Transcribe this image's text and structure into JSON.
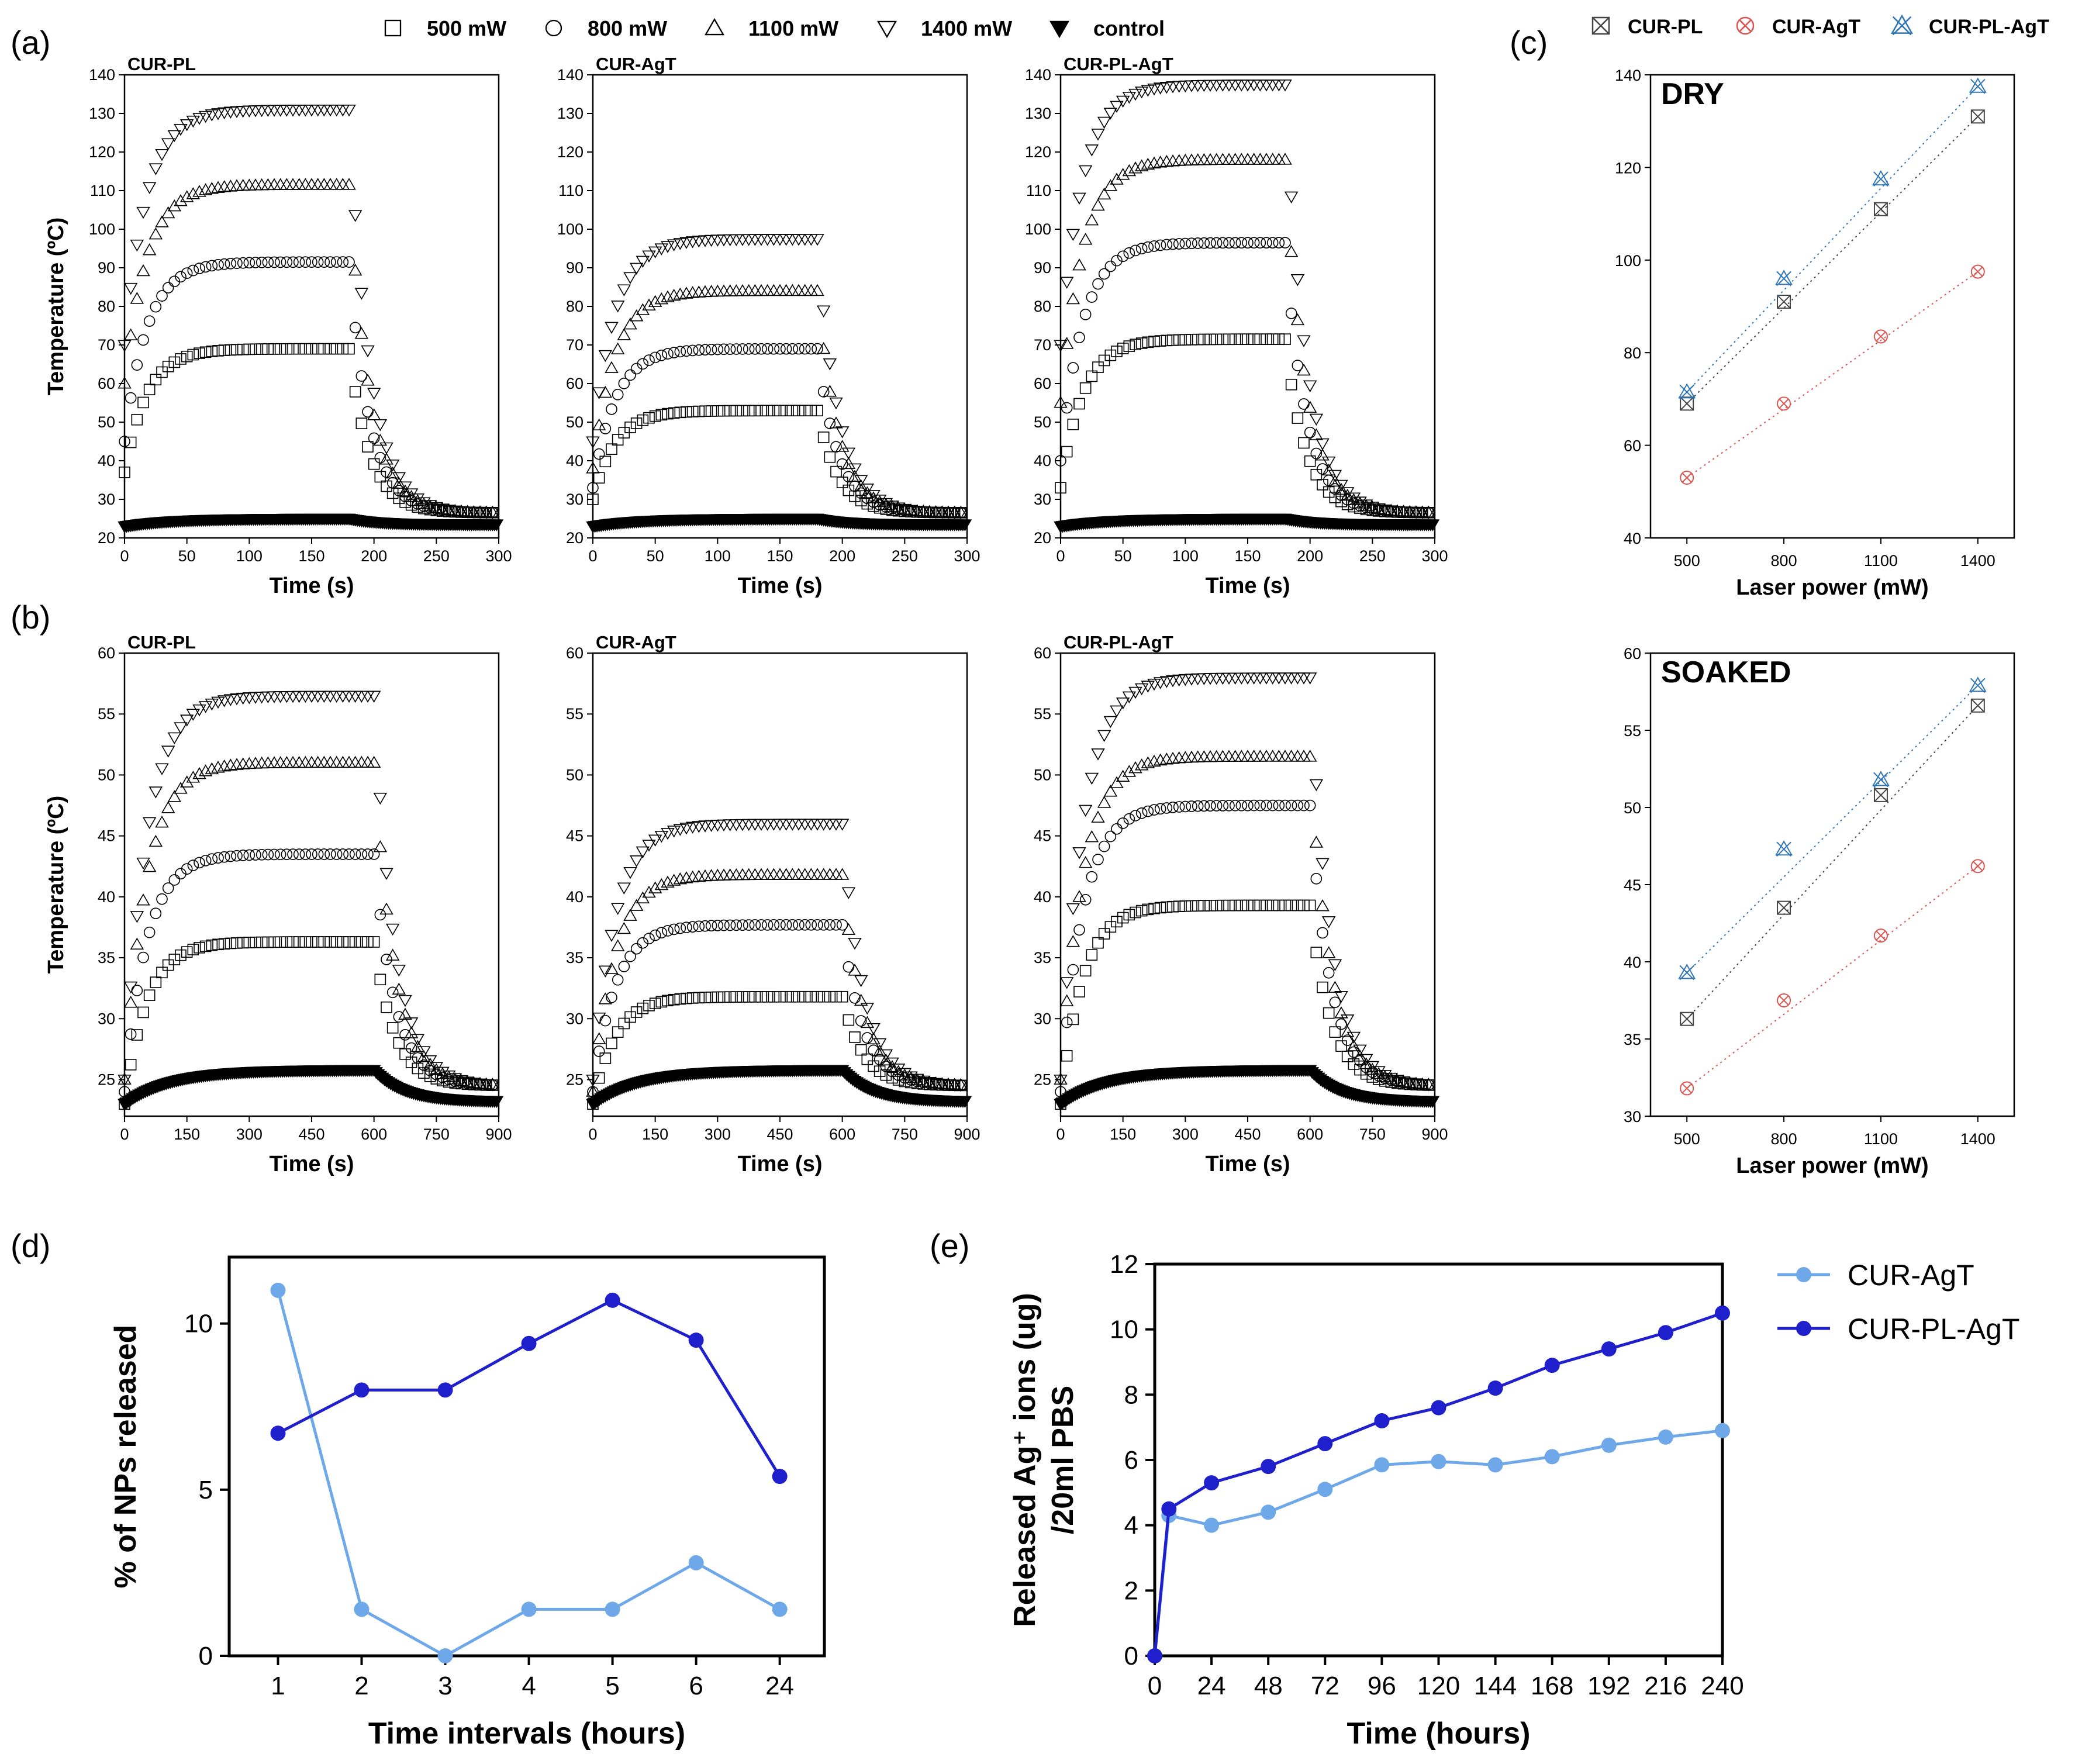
{
  "panel_labels": {
    "a": "(a)",
    "b": "(b)",
    "c": "(c)",
    "d": "(d)",
    "e": "(e)"
  },
  "legend_ab": [
    {
      "label": "500 mW",
      "marker": "square"
    },
    {
      "label": "800 mW",
      "marker": "circle"
    },
    {
      "label": "1100 mW",
      "marker": "triangle-up"
    },
    {
      "label": "1400 mW",
      "marker": "triangle-down"
    },
    {
      "label": "control",
      "marker": "triangle-down-filled"
    }
  ],
  "legend_c": [
    {
      "label": "CUR-PL",
      "marker": "boxed-x",
      "color": "#444444"
    },
    {
      "label": "CUR-AgT",
      "marker": "circled-x",
      "color": "#d9534f"
    },
    {
      "label": "CUR-PL-AgT",
      "marker": "triangle-x",
      "color": "#2e75b6"
    }
  ],
  "chart_data": [
    {
      "id": "a1",
      "type": "scatter",
      "title": "CUR-PL",
      "xlabel": "Time (s)",
      "ylabel": "Temperature (ºC)",
      "xlim": [
        0,
        300
      ],
      "ylim": [
        20,
        140
      ],
      "xticks": [
        "0",
        "50",
        "100",
        "150",
        "200",
        "250",
        "300"
      ],
      "yticks": [
        "20",
        "30",
        "40",
        "50",
        "60",
        "70",
        "80",
        "90",
        "100",
        "110",
        "120",
        "130",
        "140"
      ],
      "laser_off_s": 180,
      "ambient_c": 23.5,
      "end_c": 26.5,
      "series": [
        {
          "name": "500 mW",
          "marker": "square",
          "plateau": 69,
          "start": 37
        },
        {
          "name": "800 mW",
          "marker": "circle",
          "plateau": 91.5,
          "start": 45
        },
        {
          "name": "1100 mW",
          "marker": "triangle-up",
          "plateau": 111.5,
          "start": 60
        },
        {
          "name": "1400 mW",
          "marker": "triangle-down",
          "plateau": 131,
          "start": 70
        },
        {
          "name": "control",
          "marker": "triangle-down-filled",
          "plateau": 25,
          "start": 23
        }
      ]
    },
    {
      "id": "a2",
      "type": "scatter",
      "title": "CUR-AgT",
      "xlabel": "Time (s)",
      "ylabel": "",
      "xlim": [
        0,
        300
      ],
      "ylim": [
        20,
        140
      ],
      "xticks": [
        "0",
        "50",
        "100",
        "150",
        "200",
        "250",
        "300"
      ],
      "yticks": [
        "20",
        "30",
        "40",
        "50",
        "60",
        "70",
        "80",
        "90",
        "100",
        "110",
        "120",
        "130",
        "140"
      ],
      "laser_off_s": 180,
      "ambient_c": 23.5,
      "end_c": 26.5,
      "series": [
        {
          "name": "500 mW",
          "marker": "square",
          "plateau": 53,
          "start": 30
        },
        {
          "name": "800 mW",
          "marker": "circle",
          "plateau": 69,
          "start": 33
        },
        {
          "name": "1100 mW",
          "marker": "triangle-up",
          "plateau": 84,
          "start": 38
        },
        {
          "name": "1400 mW",
          "marker": "triangle-down",
          "plateau": 97.5,
          "start": 45
        },
        {
          "name": "control",
          "marker": "triangle-down-filled",
          "plateau": 25,
          "start": 23
        }
      ]
    },
    {
      "id": "a3",
      "type": "scatter",
      "title": "CUR-PL-AgT",
      "xlabel": "Time (s)",
      "ylabel": "",
      "xlim": [
        0,
        300
      ],
      "ylim": [
        20,
        140
      ],
      "xticks": [
        "0",
        "50",
        "100",
        "150",
        "200",
        "250",
        "300"
      ],
      "yticks": [
        "20",
        "30",
        "40",
        "50",
        "60",
        "70",
        "80",
        "90",
        "100",
        "110",
        "120",
        "130",
        "140"
      ],
      "laser_off_s": 180,
      "ambient_c": 23.5,
      "end_c": 26.5,
      "series": [
        {
          "name": "500 mW",
          "marker": "square",
          "plateau": 71.5,
          "start": 33
        },
        {
          "name": "800 mW",
          "marker": "circle",
          "plateau": 96.5,
          "start": 40
        },
        {
          "name": "1100 mW",
          "marker": "triangle-up",
          "plateau": 118,
          "start": 55
        },
        {
          "name": "1400 mW",
          "marker": "triangle-down",
          "plateau": 137.5,
          "start": 70
        },
        {
          "name": "control",
          "marker": "triangle-down-filled",
          "plateau": 25,
          "start": 23
        }
      ]
    },
    {
      "id": "b1",
      "type": "scatter",
      "title": "CUR-PL",
      "xlabel": "Time (s)",
      "ylabel": "Temperature (ºC)",
      "xlim": [
        0,
        900
      ],
      "ylim": [
        22,
        60
      ],
      "xticks": [
        "0",
        "150",
        "300",
        "450",
        "600",
        "750",
        "900"
      ],
      "yticks": [
        "25",
        "30",
        "35",
        "40",
        "45",
        "50",
        "55",
        "60"
      ],
      "laser_off_s": 600,
      "ambient_c": 23.2,
      "end_c": 24.5,
      "series": [
        {
          "name": "500 mW",
          "marker": "square",
          "plateau": 36.3,
          "start": 23
        },
        {
          "name": "800 mW",
          "marker": "circle",
          "plateau": 43.5,
          "start": 24
        },
        {
          "name": "1100 mW",
          "marker": "triangle-up",
          "plateau": 51,
          "start": 25
        },
        {
          "name": "1400 mW",
          "marker": "triangle-down",
          "plateau": 56.5,
          "start": 25
        },
        {
          "name": "control",
          "marker": "triangle-down-filled",
          "plateau": 25.8,
          "start": 23
        }
      ]
    },
    {
      "id": "b2",
      "type": "scatter",
      "title": "CUR-AgT",
      "xlabel": "Time (s)",
      "ylabel": "",
      "xlim": [
        0,
        900
      ],
      "ylim": [
        22,
        60
      ],
      "xticks": [
        "0",
        "150",
        "300",
        "450",
        "600",
        "750",
        "900"
      ],
      "yticks": [
        "25",
        "30",
        "35",
        "40",
        "45",
        "50",
        "55",
        "60"
      ],
      "laser_off_s": 600,
      "ambient_c": 23.2,
      "end_c": 24.5,
      "series": [
        {
          "name": "500 mW",
          "marker": "square",
          "plateau": 31.8,
          "start": 23
        },
        {
          "name": "800 mW",
          "marker": "circle",
          "plateau": 37.7,
          "start": 24
        },
        {
          "name": "1100 mW",
          "marker": "triangle-up",
          "plateau": 41.8,
          "start": 24
        },
        {
          "name": "1400 mW",
          "marker": "triangle-down",
          "plateau": 46,
          "start": 25
        },
        {
          "name": "control",
          "marker": "triangle-down-filled",
          "plateau": 25.8,
          "start": 23
        }
      ]
    },
    {
      "id": "b3",
      "type": "scatter",
      "title": "CUR-PL-AgT",
      "xlabel": "Time (s)",
      "ylabel": "",
      "xlim": [
        0,
        900
      ],
      "ylim": [
        22,
        60
      ],
      "xticks": [
        "0",
        "150",
        "300",
        "450",
        "600",
        "750",
        "900"
      ],
      "yticks": [
        "25",
        "30",
        "35",
        "40",
        "45",
        "50",
        "55",
        "60"
      ],
      "laser_off_s": 600,
      "ambient_c": 23.2,
      "end_c": 24.5,
      "series": [
        {
          "name": "500 mW",
          "marker": "square",
          "plateau": 39.3,
          "start": 23
        },
        {
          "name": "800 mW",
          "marker": "circle",
          "plateau": 47.5,
          "start": 24
        },
        {
          "name": "1100 mW",
          "marker": "triangle-up",
          "plateau": 51.5,
          "start": 25
        },
        {
          "name": "1400 mW",
          "marker": "triangle-down",
          "plateau": 58,
          "start": 25
        },
        {
          "name": "control",
          "marker": "triangle-down-filled",
          "plateau": 25.8,
          "start": 23
        }
      ]
    },
    {
      "id": "c1",
      "type": "scatter",
      "label": "DRY",
      "xlabel": "Laser power (mW)",
      "ylabel": "",
      "categories": [
        "500",
        "800",
        "1100",
        "1400"
      ],
      "ylim": [
        40,
        140
      ],
      "yticks": [
        "40",
        "60",
        "80",
        "100",
        "120",
        "140"
      ],
      "series": [
        {
          "name": "CUR-PL",
          "marker": "boxed-x",
          "color": "#444444",
          "values": [
            69,
            91,
            111,
            131
          ]
        },
        {
          "name": "CUR-AgT",
          "marker": "circled-x",
          "color": "#d9534f",
          "values": [
            53,
            69,
            83.5,
            97.5
          ]
        },
        {
          "name": "CUR-PL-AgT",
          "marker": "triangle-x",
          "color": "#2e75b6",
          "values": [
            71.5,
            96,
            117.5,
            137.5
          ]
        }
      ]
    },
    {
      "id": "c2",
      "type": "scatter",
      "label": "SOAKED",
      "xlabel": "Laser power (mW)",
      "ylabel": "",
      "categories": [
        "500",
        "800",
        "1100",
        "1400"
      ],
      "ylim": [
        30,
        60
      ],
      "yticks": [
        "30",
        "35",
        "40",
        "45",
        "50",
        "55",
        "60"
      ],
      "series": [
        {
          "name": "CUR-PL",
          "marker": "boxed-x",
          "color": "#444444",
          "values": [
            36.3,
            43.5,
            50.8,
            56.6
          ]
        },
        {
          "name": "CUR-AgT",
          "marker": "circled-x",
          "color": "#d9534f",
          "values": [
            31.8,
            37.5,
            41.7,
            46.2
          ]
        },
        {
          "name": "CUR-PL-AgT",
          "marker": "triangle-x",
          "color": "#2e75b6",
          "values": [
            39.3,
            47.3,
            51.8,
            57.9
          ]
        }
      ]
    },
    {
      "id": "d",
      "type": "line",
      "xlabel": "Time intervals (hours)",
      "ylabel": "% of NPs released",
      "categories": [
        "1",
        "2",
        "3",
        "4",
        "5",
        "6",
        "24"
      ],
      "ylim": [
        0,
        12
      ],
      "yticks": [
        "0",
        "5",
        "10"
      ],
      "series": [
        {
          "name": "CUR-AgT",
          "color": "#6fa8e8",
          "values": [
            11,
            1.4,
            0,
            1.4,
            1.4,
            2.8,
            1.4
          ]
        },
        {
          "name": "CUR-PL-AgT",
          "color": "#1f1fcc",
          "values": [
            6.7,
            8,
            8,
            9.4,
            10.7,
            9.5,
            5.4
          ]
        }
      ]
    },
    {
      "id": "e",
      "type": "line",
      "xlabel": "Time (hours)",
      "ylabel_line1": "Released Ag⁺ ions (ug)",
      "ylabel_line2": "/20ml PBS",
      "xlim": [
        0,
        240
      ],
      "ylim": [
        0,
        12
      ],
      "xticks": [
        "0",
        "24",
        "48",
        "72",
        "96",
        "120",
        "144",
        "168",
        "192",
        "216",
        "240"
      ],
      "yticks": [
        "0",
        "2",
        "4",
        "6",
        "8",
        "10",
        "12"
      ],
      "x": [
        0,
        6,
        24,
        48,
        72,
        96,
        120,
        144,
        168,
        192,
        216,
        240
      ],
      "series": [
        {
          "name": "CUR-AgT",
          "color": "#6fa8e8",
          "values": [
            0,
            4.3,
            4,
            4.4,
            5.1,
            5.85,
            5.95,
            5.85,
            6.1,
            6.45,
            6.7,
            6.9
          ]
        },
        {
          "name": "CUR-PL-AgT",
          "color": "#1f1fcc",
          "values": [
            0,
            4.5,
            5.3,
            5.8,
            6.5,
            7.2,
            7.6,
            8.2,
            8.9,
            9.4,
            9.9,
            10.5
          ]
        }
      ]
    }
  ]
}
